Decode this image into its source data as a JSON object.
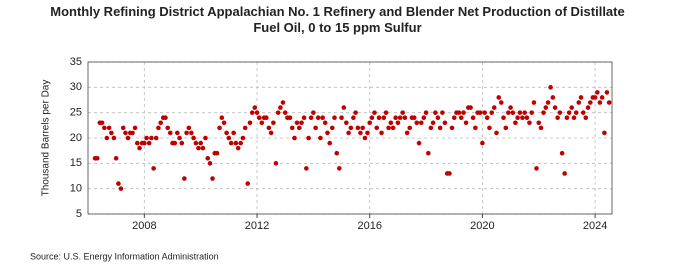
{
  "chart_data": {
    "type": "scatter",
    "title": "Monthly Refining District Appalachian No. 1 Refinery and Blender Net Production of Distillate Fuel Oil, 0 to 15 ppm Sulfur",
    "y_label": "Thousand Barrels per Day",
    "source": "Source: U.S. Energy Information Administration",
    "color": "#c00000",
    "grid": true,
    "xlim": [
      2006,
      2024.6
    ],
    "xticks": [
      2008,
      2012,
      2016,
      2020,
      2024
    ],
    "ylim": [
      5,
      35
    ],
    "yticks": [
      5,
      10,
      15,
      20,
      25,
      30,
      35
    ],
    "x": [
      2006.25,
      2006.33,
      2006.42,
      2006.5,
      2006.58,
      2006.67,
      2006.75,
      2006.83,
      2006.92,
      2007,
      2007.08,
      2007.17,
      2007.25,
      2007.33,
      2007.42,
      2007.5,
      2007.58,
      2007.67,
      2007.75,
      2007.83,
      2007.92,
      2008,
      2008.08,
      2008.17,
      2008.25,
      2008.33,
      2008.42,
      2008.5,
      2008.58,
      2008.67,
      2008.75,
      2008.83,
      2008.92,
      2009,
      2009.08,
      2009.17,
      2009.25,
      2009.33,
      2009.42,
      2009.5,
      2009.58,
      2009.67,
      2009.75,
      2009.83,
      2009.92,
      2010,
      2010.08,
      2010.17,
      2010.25,
      2010.33,
      2010.42,
      2010.5,
      2010.58,
      2010.67,
      2010.75,
      2010.83,
      2010.92,
      2011,
      2011.08,
      2011.17,
      2011.25,
      2011.33,
      2011.42,
      2011.5,
      2011.58,
      2011.67,
      2011.75,
      2011.83,
      2011.92,
      2012,
      2012.08,
      2012.17,
      2012.25,
      2012.33,
      2012.42,
      2012.5,
      2012.58,
      2012.67,
      2012.75,
      2012.83,
      2012.92,
      2013,
      2013.08,
      2013.17,
      2013.25,
      2013.33,
      2013.42,
      2013.5,
      2013.58,
      2013.67,
      2013.75,
      2013.83,
      2013.92,
      2014,
      2014.08,
      2014.17,
      2014.25,
      2014.33,
      2014.42,
      2014.5,
      2014.58,
      2014.67,
      2014.75,
      2014.83,
      2014.92,
      2015,
      2015.08,
      2015.17,
      2015.25,
      2015.33,
      2015.42,
      2015.5,
      2015.58,
      2015.67,
      2015.75,
      2015.83,
      2015.92,
      2016,
      2016.08,
      2016.17,
      2016.25,
      2016.33,
      2016.42,
      2016.5,
      2016.58,
      2016.67,
      2016.75,
      2016.83,
      2016.92,
      2017,
      2017.08,
      2017.17,
      2017.25,
      2017.33,
      2017.42,
      2017.5,
      2017.58,
      2017.67,
      2017.75,
      2017.83,
      2017.92,
      2018,
      2018.08,
      2018.17,
      2018.25,
      2018.33,
      2018.42,
      2018.5,
      2018.58,
      2018.67,
      2018.75,
      2018.83,
      2018.92,
      2019,
      2019.08,
      2019.17,
      2019.25,
      2019.33,
      2019.42,
      2019.5,
      2019.58,
      2019.67,
      2019.75,
      2019.83,
      2019.92,
      2020,
      2020.08,
      2020.17,
      2020.25,
      2020.33,
      2020.42,
      2020.5,
      2020.58,
      2020.67,
      2020.75,
      2020.83,
      2020.92,
      2021,
      2021.08,
      2021.17,
      2021.25,
      2021.33,
      2021.42,
      2021.5,
      2021.58,
      2021.67,
      2021.75,
      2021.83,
      2021.92,
      2022,
      2022.08,
      2022.17,
      2022.25,
      2022.33,
      2022.42,
      2022.5,
      2022.58,
      2022.67,
      2022.75,
      2022.83,
      2022.92,
      2023,
      2023.08,
      2023.17,
      2023.25,
      2023.33,
      2023.42,
      2023.5,
      2023.58,
      2023.67,
      2023.75,
      2023.83,
      2023.92,
      2024,
      2024.08,
      2024.17,
      2024.25,
      2024.33,
      2024.42,
      2024.5
    ],
    "values": [
      16,
      16,
      23,
      23,
      22,
      20,
      22,
      21,
      20,
      16,
      11,
      10,
      22,
      21,
      20,
      21,
      21,
      22,
      19,
      18,
      19,
      19,
      20,
      19,
      20,
      14,
      20,
      22,
      23,
      24,
      24,
      22,
      21,
      19,
      19,
      21,
      20,
      19,
      12,
      21,
      22,
      21,
      20,
      19,
      18,
      19,
      18,
      20,
      16,
      15,
      12,
      17,
      17,
      22,
      24,
      23,
      21,
      20,
      19,
      21,
      19,
      18,
      19,
      20,
      22,
      11,
      23,
      25,
      26,
      25,
      24,
      23,
      24,
      24,
      22,
      21,
      23,
      15,
      25,
      26,
      27,
      25,
      24,
      24,
      22,
      20,
      23,
      22,
      23,
      24,
      14,
      20,
      24,
      25,
      22,
      24,
      20,
      24,
      23,
      21,
      19,
      22,
      24,
      17,
      14,
      24,
      26,
      23,
      21,
      22,
      24,
      25,
      22,
      21,
      22,
      20,
      21,
      23,
      24,
      25,
      22,
      24,
      21,
      24,
      25,
      22,
      23,
      22,
      24,
      23,
      24,
      25,
      24,
      21,
      22,
      24,
      24,
      23,
      19,
      23,
      24,
      25,
      17,
      22,
      23,
      25,
      24,
      22,
      25,
      23,
      13,
      13,
      22,
      24,
      25,
      25,
      24,
      25,
      23,
      26,
      26,
      24,
      22,
      25,
      25,
      19,
      25,
      24,
      22,
      25,
      26,
      21,
      28,
      27,
      24,
      22,
      25,
      26,
      25,
      23,
      24,
      25,
      24,
      25,
      24,
      23,
      25,
      27,
      14,
      23,
      22,
      25,
      26,
      27,
      30,
      28,
      26,
      24,
      25,
      17,
      13,
      24,
      25,
      26,
      24,
      25,
      27,
      28,
      25,
      24,
      26,
      27,
      28,
      28,
      29,
      27,
      28,
      21,
      29,
      27
    ]
  }
}
